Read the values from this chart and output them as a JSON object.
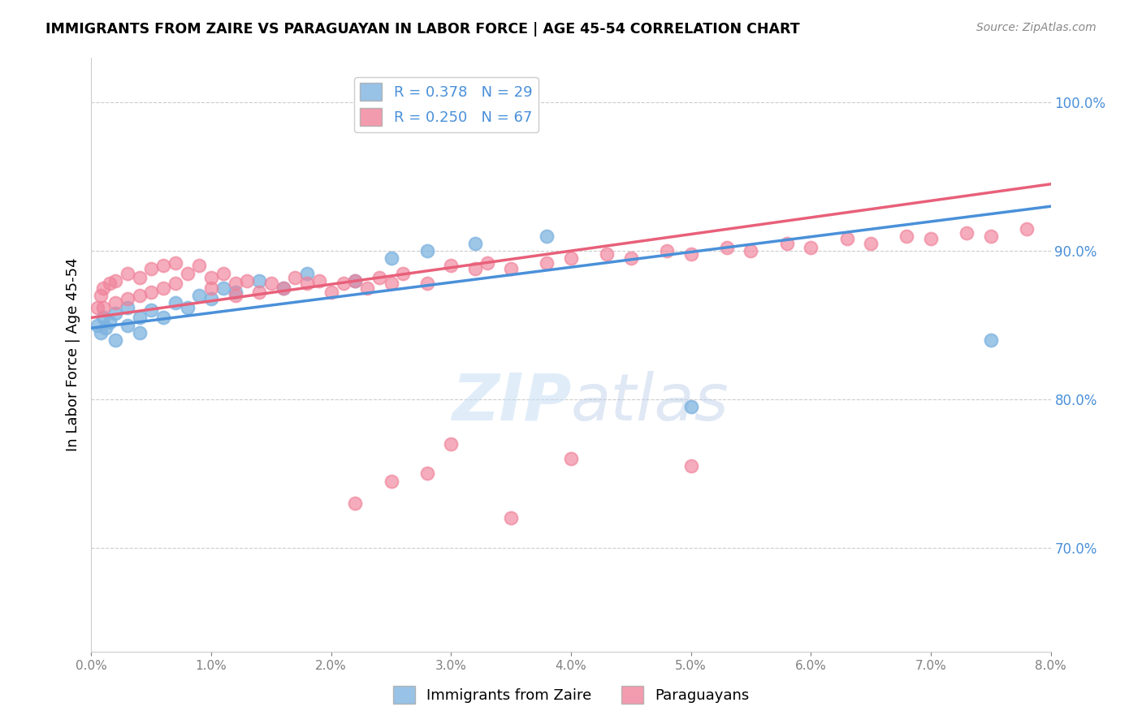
{
  "title": "IMMIGRANTS FROM ZAIRE VS PARAGUAYAN IN LABOR FORCE | AGE 45-54 CORRELATION CHART",
  "source": "Source: ZipAtlas.com",
  "ylabel": "In Labor Force | Age 45-54",
  "right_yticks": [
    0.7,
    0.8,
    0.9,
    1.0
  ],
  "right_yticklabels": [
    "70.0%",
    "80.0%",
    "90.0%",
    "100.0%"
  ],
  "xlim": [
    0.0,
    0.08
  ],
  "ylim": [
    0.63,
    1.03
  ],
  "legend_entries": [
    {
      "label": "R = 0.378   N = 29",
      "color": "#7eb3e0"
    },
    {
      "label": "R = 0.250   N = 67",
      "color": "#f0829a"
    }
  ],
  "watermark": "ZIPatlas",
  "zaire_color": "#7eb3e0",
  "paraguay_color": "#f0829a",
  "zaire_line_color": "#4a90d9",
  "paraguay_line_color": "#e8607a",
  "zaire_x": [
    0.0005,
    0.0008,
    0.001,
    0.0012,
    0.0015,
    0.002,
    0.002,
    0.003,
    0.003,
    0.004,
    0.004,
    0.005,
    0.006,
    0.007,
    0.008,
    0.009,
    0.01,
    0.011,
    0.012,
    0.014,
    0.016,
    0.018,
    0.022,
    0.025,
    0.028,
    0.032,
    0.038,
    0.05,
    0.075
  ],
  "zaire_y": [
    0.85,
    0.845,
    0.855,
    0.848,
    0.852,
    0.858,
    0.84,
    0.862,
    0.85,
    0.855,
    0.845,
    0.86,
    0.855,
    0.865,
    0.862,
    0.87,
    0.868,
    0.875,
    0.872,
    0.88,
    0.875,
    0.885,
    0.88,
    0.895,
    0.9,
    0.905,
    0.91,
    0.795,
    0.84
  ],
  "paraguay_x": [
    0.0005,
    0.0008,
    0.001,
    0.001,
    0.0015,
    0.002,
    0.002,
    0.003,
    0.003,
    0.004,
    0.004,
    0.005,
    0.005,
    0.006,
    0.006,
    0.007,
    0.007,
    0.008,
    0.009,
    0.01,
    0.01,
    0.011,
    0.012,
    0.012,
    0.013,
    0.014,
    0.015,
    0.016,
    0.017,
    0.018,
    0.019,
    0.02,
    0.021,
    0.022,
    0.023,
    0.024,
    0.025,
    0.026,
    0.028,
    0.03,
    0.032,
    0.033,
    0.035,
    0.038,
    0.04,
    0.043,
    0.045,
    0.048,
    0.05,
    0.053,
    0.055,
    0.058,
    0.06,
    0.063,
    0.065,
    0.068,
    0.07,
    0.073,
    0.075,
    0.078,
    0.04,
    0.03,
    0.028,
    0.035,
    0.025,
    0.05,
    0.022
  ],
  "paraguay_y": [
    0.862,
    0.87,
    0.875,
    0.862,
    0.878,
    0.88,
    0.865,
    0.885,
    0.868,
    0.882,
    0.87,
    0.888,
    0.872,
    0.89,
    0.875,
    0.892,
    0.878,
    0.885,
    0.89,
    0.882,
    0.875,
    0.885,
    0.878,
    0.87,
    0.88,
    0.872,
    0.878,
    0.875,
    0.882,
    0.878,
    0.88,
    0.872,
    0.878,
    0.88,
    0.875,
    0.882,
    0.878,
    0.885,
    0.878,
    0.89,
    0.888,
    0.892,
    0.888,
    0.892,
    0.895,
    0.898,
    0.895,
    0.9,
    0.898,
    0.902,
    0.9,
    0.905,
    0.902,
    0.908,
    0.905,
    0.91,
    0.908,
    0.912,
    0.91,
    0.915,
    0.76,
    0.77,
    0.75,
    0.72,
    0.745,
    0.755,
    0.73
  ],
  "zaire_trend_x": [
    0.0,
    0.08
  ],
  "zaire_trend_y": [
    0.848,
    0.93
  ],
  "paraguay_trend_x": [
    0.0,
    0.08
  ],
  "paraguay_trend_y": [
    0.855,
    0.945
  ]
}
